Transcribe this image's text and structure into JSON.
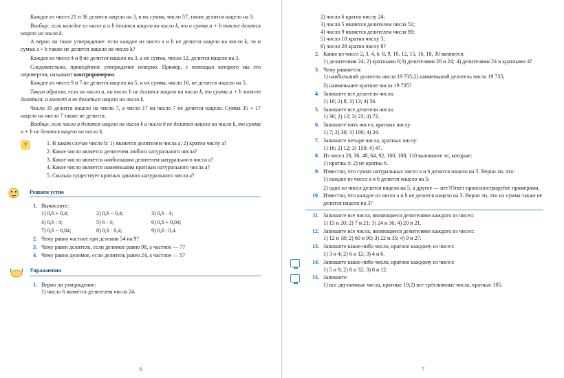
{
  "left": {
    "paras": [
      {
        "text": "Каждое из чисел 21 и 36 делится нацело на 3, и их сумма, число 57, также делится нацело на 3.",
        "italic": false
      },
      {
        "text": "Вообще, если каждое из чисел a и b делится нацело на число k, то и сумма a + b также делится нацело на число k.",
        "italic": true
      },
      {
        "text": "А верно ли такое утверждение: если каждое из чисел a и b не делится нацело на число k, то и сумма a + b также не делится нацело на число k?",
        "italic": false
      },
      {
        "text": "Каждое из чисел 4 и 8 не делится нацело на 3, а их сумма, число 12, делится нацело на 3.",
        "italic": false
      },
      {
        "text": "Следовательно, приведённое утверждение неверно. Пример, с помощью которого мы его опровергли, называют контрпримером.",
        "italic": false,
        "bold_word": "контрпримером"
      },
      {
        "text": "Каждое из чисел 9 и 7 не делится нацело на 5, и их сумма, число 16, не делится нацело на 5.",
        "italic": false
      },
      {
        "text": "Таким образом, если ни число a, ни число b не делятся нацело на число k, то сумма a + b может делиться, а может и не делиться нацело на число k.",
        "italic": true
      },
      {
        "text": "Число 35 делится нацело на число 7, а число 17 на число 7 не делится нацело. Сумма 35 + 17 нацело на число 7 также не делится.",
        "italic": false
      },
      {
        "text": "Вообще, если число a делится нацело на число k и число b не делится нацело на число k, то сумма a + b не делится нацело на число k.",
        "italic": true
      }
    ],
    "questions": [
      "1. В каком случае число b: 1) является делителем числа a; 2) кратно числу a?",
      "2. Какое число является делителем любого натурального числа?",
      "3. Какое число является наибольшим делителем натурального числа a?",
      "4. Какое число является наименьшим кратным натурального числа a?",
      "5. Сколько существует кратных данного натурального числа a?"
    ],
    "oral_title": "Решаем устно",
    "oral": [
      {
        "n": "1.",
        "body": "Вычислите:",
        "subs": [
          "1) 0,6 + 0,4;",
          "2) 0,6 − 0,4;",
          "3) 0,6 · 4;",
          "4) 0,6 : 4;",
          "5) 6 : 4;",
          "6) 0,6 + 0,04;",
          "7) 0,6 − 0,04;",
          "8) 0,6 · 0,4;",
          "9) 0,6 : 0,4."
        ]
      },
      {
        "n": "2.",
        "body": "Чему равно частное при делении 54 на 9?"
      },
      {
        "n": "3.",
        "body": "Чему равен делитель, если делимое равно 98, а частное — 7?"
      },
      {
        "n": "4.",
        "body": "Чему равно делимое, если делитель равен 24, а частное — 5?"
      }
    ],
    "ex_title": "Упражнения",
    "ex": [
      {
        "n": "1.",
        "body": "Верно ли утверждение:",
        "subs": [
          "1) число 6 является делителем числа 24;"
        ]
      }
    ],
    "pagenum": "6"
  },
  "right": {
    "cont": [
      "2) число 6 кратно числу 24;",
      "3) число 5 является делителем числа 51;",
      "4) число 9 является делителем числа 99;",
      "5) число 18 кратно числу 3;",
      "6) число 28 кратно числу 8?"
    ],
    "ex": [
      {
        "n": "2.",
        "body": "Какие из чисел 2, 3, 4, 6, 8, 9, 10, 12, 15, 16, 18, 30 являются:",
        "subs": [
          "1) делителями 24;    2) кратными 6;",
          "3) делителями 20 и 24;",
          "4) делителями 24 и кратными 4?"
        ]
      },
      {
        "n": "3.",
        "body": "Чему равняется:",
        "subs": [
          "1) наибольший делитель числа 19 735;",
          "2) наименьший делитель числа 19 735;",
          "3) наименьшее кратное числа 19 735?"
        ]
      },
      {
        "n": "4.",
        "body": "Запишите все делители числа:",
        "subs": [
          "1) 18;     2) 8;     3) 13;     4) 56."
        ]
      },
      {
        "n": "5.",
        "body": "Запишите все делители числа:",
        "subs": [
          "1) 30;     2) 12;     3) 23;     4) 72."
        ]
      },
      {
        "n": "6.",
        "body": "Запишите пять чисел, кратных числу:",
        "subs": [
          "1) 7;     2) 30;     3) 100;     4) 34."
        ]
      },
      {
        "n": "7.",
        "body": "Запишите четыре числа, кратных числу:",
        "subs": [
          "1) 16;     2) 12;     3) 150;     4) 47."
        ]
      },
      {
        "n": "8.",
        "body": "Из чисел 28, 36, 48, 64, 92, 100, 108, 110 выпишите те, которые:",
        "subs": [
          "1) кратны 4;     2) не кратны 6."
        ]
      },
      {
        "n": "9.",
        "body": "Известно, что сумма натуральных чисел a и b делится нацело на 5. Верно ли, что:",
        "subs": [
          "1) каждое из чисел a и b делится нацело на 5;",
          "2) одно из чисел делится нацело на 5, а другое — нет?",
          "Ответ проиллюстрируйте примерами."
        ]
      },
      {
        "n": "10.",
        "body": "Известно, что каждое из чисел a и b не делится нацело на 3. Верно ли, что их сумма также не делится нацело на 3?"
      },
      {
        "n": "11.",
        "body": "Запишите все числа, являющиеся делителями каждого из чисел:",
        "subs": [
          "1) 15 и 20;   2) 7 и 21;   3) 24 и 36;   4) 20 и 21."
        ]
      },
      {
        "n": "12.",
        "body": "Запишите все числа, являющиеся делителями каждого из чисел:",
        "subs": [
          "1) 12 и 18;   2) 60 и 90;   3) 22 и 35;   4) 9 и 27."
        ]
      },
      {
        "n": "13.",
        "body": "Запишите какое-либо число, кратное каждому из чисел:",
        "subs": [
          "1) 3 и 4;     2) 6 и 12;     3) 4 и 6."
        ]
      },
      {
        "n": "14.",
        "body": "Запишите какое-либо число, кратное каждому из чисел:",
        "subs": [
          "1) 5 и 9;     2) 8 и 32;     3) 8 и 12."
        ]
      },
      {
        "n": "15.",
        "body": "Запишите:",
        "subs": [
          "1) все двузначные числа, кратные 19;",
          "2) все трёхзначные числа, кратные 105."
        ]
      }
    ],
    "pagenum": "7"
  }
}
